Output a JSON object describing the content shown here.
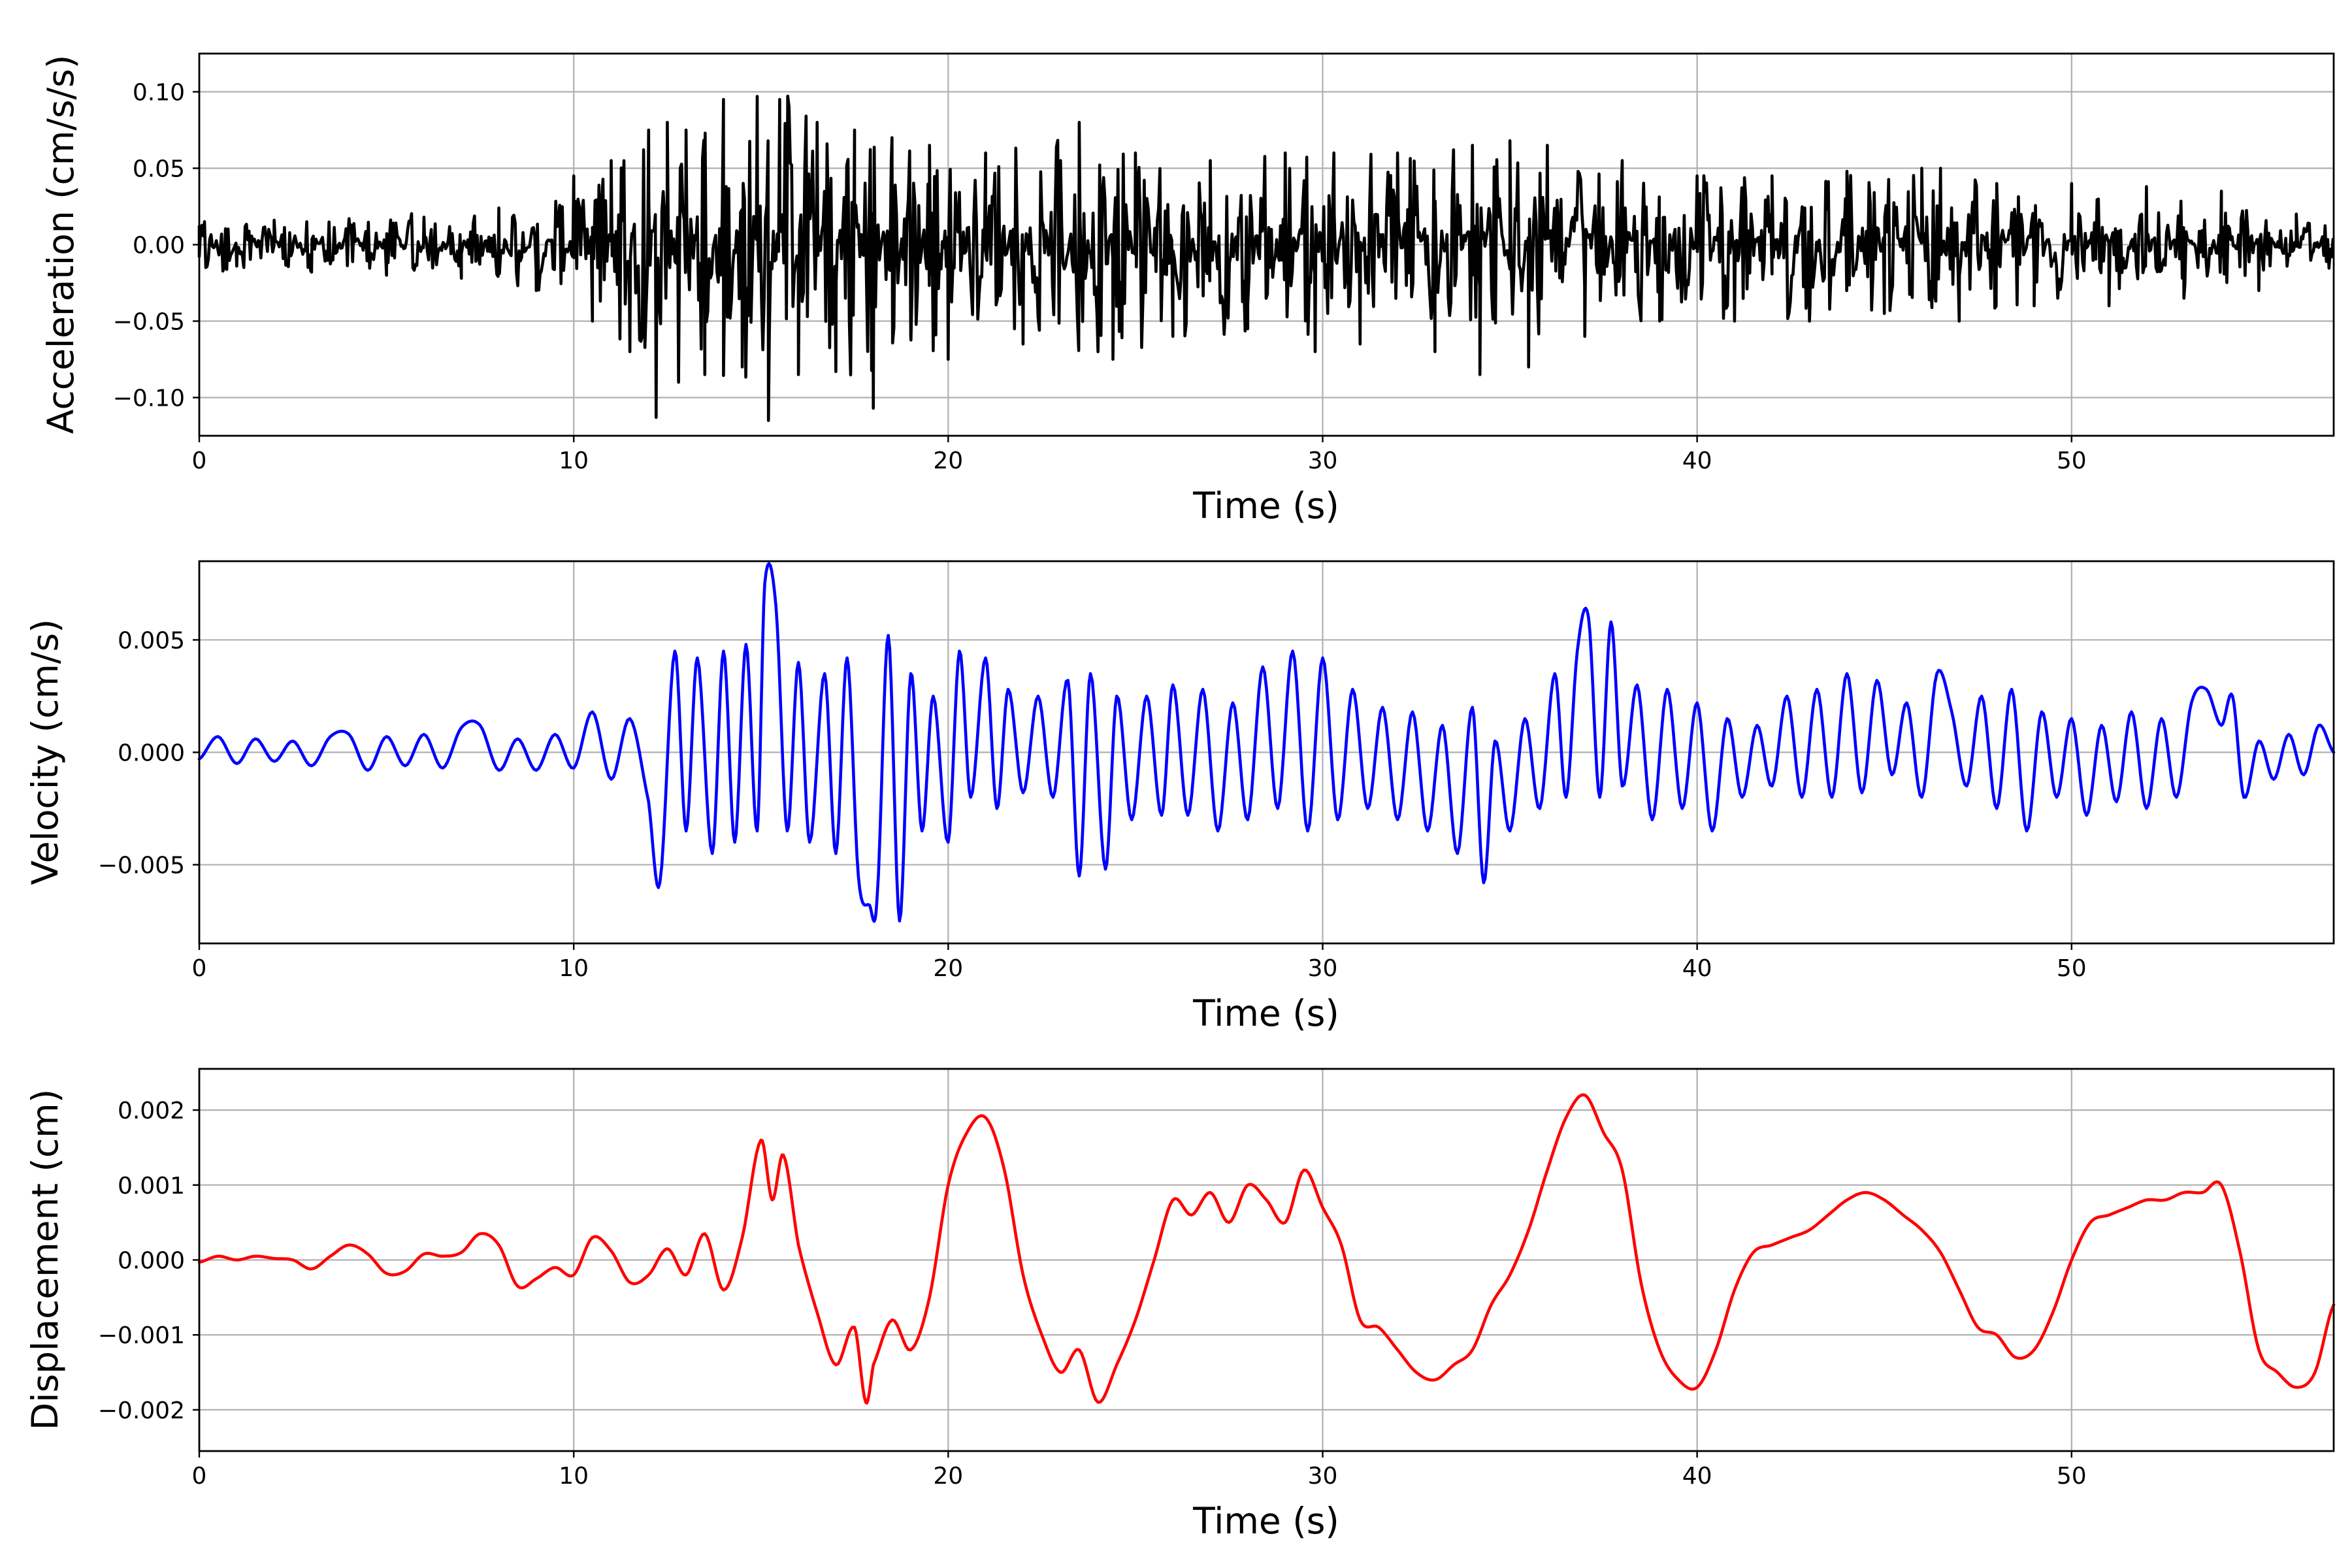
{
  "chart_data": [
    {
      "type": "line",
      "xlabel": "Time (s)",
      "ylabel": "Acceleration (cm/s/s)",
      "xlim": [
        0,
        57
      ],
      "ylim": [
        -0.125,
        0.125
      ],
      "xticks": [
        0,
        10,
        20,
        30,
        40,
        50
      ],
      "xtick_labels": [
        "0",
        "10",
        "20",
        "30",
        "40",
        "50"
      ],
      "yticks": [
        0.1,
        0.05,
        0.0,
        -0.05,
        -0.1
      ],
      "ytick_labels": [
        "0.10",
        "0.05",
        "0.00",
        "−0.05",
        "−0.10"
      ],
      "grid": true,
      "series": [
        {
          "color": "#000000",
          "envelope": [
            [
              0,
              0.02
            ],
            [
              5,
              0.02
            ],
            [
              8,
              0.025
            ],
            [
              10,
              0.04
            ],
            [
              11,
              0.06
            ],
            [
              12,
              0.09
            ],
            [
              15,
              0.1
            ],
            [
              18,
              0.09
            ],
            [
              20,
              0.07
            ],
            [
              24,
              0.07
            ],
            [
              30,
              0.06
            ],
            [
              34,
              0.07
            ],
            [
              37,
              0.06
            ],
            [
              40,
              0.05
            ],
            [
              46,
              0.05
            ],
            [
              50,
              0.035
            ],
            [
              54,
              0.03
            ],
            [
              57,
              0.015
            ]
          ],
          "x": [
            0,
            1,
            2,
            3,
            4,
            5,
            6,
            7,
            8,
            9,
            10,
            10.5,
            11,
            11.5,
            12,
            12.2,
            12.5,
            12.8,
            13,
            13.5,
            14,
            14.5,
            14.9,
            15.2,
            15.5,
            16,
            16.5,
            17,
            17.5,
            18,
            18.5,
            19,
            19.5,
            20,
            21,
            22,
            23,
            23.5,
            24,
            24.4,
            25,
            26,
            27,
            28,
            29,
            29.8,
            30.3,
            31,
            32,
            33,
            34,
            34.2,
            35,
            35.5,
            36,
            37,
            38,
            39,
            40,
            41,
            42,
            43,
            44,
            45,
            46,
            46.5,
            47,
            48,
            49,
            50,
            51,
            52,
            53,
            54,
            55,
            56,
            57
          ],
          "y": [
            0.012,
            -0.014,
            0.016,
            -0.018,
            0.017,
            -0.02,
            0.018,
            -0.022,
            0.024,
            -0.03,
            0.045,
            -0.05,
            0.055,
            -0.07,
            0.075,
            -0.113,
            0.08,
            -0.09,
            0.075,
            -0.085,
            0.095,
            -0.08,
            0.097,
            -0.115,
            0.095,
            -0.085,
            0.08,
            -0.083,
            0.075,
            -0.107,
            0.07,
            -0.06,
            0.065,
            -0.075,
            0.06,
            -0.065,
            0.055,
            0.08,
            -0.07,
            -0.075,
            0.06,
            -0.06,
            0.055,
            -0.055,
            0.06,
            -0.07,
            0.06,
            -0.065,
            0.06,
            -0.07,
            0.065,
            -0.085,
            0.068,
            -0.08,
            0.065,
            -0.06,
            0.055,
            -0.05,
            0.045,
            -0.05,
            0.045,
            -0.05,
            0.048,
            -0.045,
            0.05,
            0.05,
            -0.05,
            0.04,
            -0.04,
            0.04,
            -0.04,
            0.038,
            -0.035,
            0.035,
            -0.03,
            0.02,
            -0.012
          ]
        }
      ]
    },
    {
      "type": "line",
      "xlabel": "Time (s)",
      "ylabel": "Velocity (cm/s)",
      "xlim": [
        0,
        57
      ],
      "ylim": [
        -0.0085,
        0.0085
      ],
      "xticks": [
        0,
        10,
        20,
        30,
        40,
        50
      ],
      "xtick_labels": [
        "0",
        "10",
        "20",
        "30",
        "40",
        "50"
      ],
      "yticks": [
        0.005,
        0.0,
        -0.005
      ],
      "ytick_labels": [
        "0.005",
        "0.000",
        "−0.005"
      ],
      "grid": true,
      "series": [
        {
          "color": "#0000ff",
          "x": [
            0,
            0.5,
            1,
            1.5,
            2,
            2.5,
            3,
            3.5,
            4,
            4.5,
            5,
            5.5,
            6,
            6.5,
            7,
            7.5,
            8,
            8.5,
            9,
            9.5,
            10,
            10.5,
            11,
            11.5,
            12,
            12.3,
            12.7,
            13,
            13.3,
            13.7,
            14,
            14.3,
            14.6,
            14.9,
            15.1,
            15.4,
            15.7,
            16,
            16.3,
            16.7,
            17,
            17.3,
            17.6,
            17.9,
            18.1,
            18.4,
            18.7,
            19,
            19.3,
            19.6,
            20,
            20.3,
            20.6,
            21,
            21.3,
            21.6,
            22,
            22.4,
            22.8,
            23.2,
            23.5,
            23.8,
            24.2,
            24.5,
            24.9,
            25.3,
            25.7,
            26,
            26.4,
            26.8,
            27.2,
            27.6,
            28,
            28.4,
            28.8,
            29.2,
            29.6,
            30,
            30.4,
            30.8,
            31.2,
            31.6,
            32,
            32.4,
            32.8,
            33.2,
            33.6,
            34,
            34.3,
            34.6,
            35,
            35.4,
            35.8,
            36.2,
            36.5,
            36.8,
            37.1,
            37.4,
            37.7,
            38,
            38.4,
            38.8,
            39.2,
            39.6,
            40,
            40.4,
            40.8,
            41.2,
            41.6,
            42,
            42.4,
            42.8,
            43.2,
            43.6,
            44,
            44.4,
            44.8,
            45.2,
            45.6,
            46,
            46.4,
            46.8,
            47.2,
            47.6,
            48,
            48.4,
            48.8,
            49.2,
            49.6,
            50,
            50.4,
            50.8,
            51.2,
            51.6,
            52,
            52.4,
            52.8,
            53.2,
            53.6,
            54,
            54.3,
            54.6,
            55,
            55.4,
            55.8,
            56.2,
            56.6,
            57
          ],
          "y": [
            -0.0003,
            0.0007,
            -0.0005,
            0.0006,
            -0.0004,
            0.0005,
            -0.0006,
            0.0007,
            0.0008,
            -0.0008,
            0.0007,
            -0.0006,
            0.0008,
            -0.0007,
            0.0011,
            0.0012,
            -0.0008,
            0.0006,
            -0.0008,
            0.0008,
            -0.0007,
            0.0018,
            -0.0012,
            0.0015,
            -0.0022,
            -0.0058,
            0.0045,
            -0.0035,
            0.0042,
            -0.0045,
            0.0045,
            -0.004,
            0.0048,
            -0.0035,
            0.0075,
            0.0065,
            -0.0035,
            0.004,
            -0.004,
            0.0035,
            -0.0045,
            0.0042,
            -0.0055,
            -0.0068,
            -0.0065,
            0.0052,
            -0.0075,
            0.0035,
            -0.0035,
            0.0025,
            -0.004,
            0.0045,
            -0.002,
            0.0042,
            -0.0025,
            0.0028,
            -0.0018,
            0.0025,
            -0.002,
            0.0032,
            -0.0055,
            0.0035,
            -0.0052,
            0.0025,
            -0.003,
            0.0025,
            -0.0028,
            0.003,
            -0.0028,
            0.0028,
            -0.0035,
            0.0022,
            -0.003,
            0.0038,
            -0.0025,
            0.0045,
            -0.0035,
            0.0042,
            -0.003,
            0.0028,
            -0.0025,
            0.002,
            -0.003,
            0.0018,
            -0.0035,
            0.0012,
            -0.0045,
            0.002,
            -0.0058,
            0.0005,
            -0.0035,
            0.0015,
            -0.0025,
            0.0035,
            -0.002,
            0.0045,
            0.006,
            -0.002,
            0.0058,
            -0.0015,
            0.003,
            -0.003,
            0.0028,
            -0.0025,
            0.0022,
            -0.0035,
            0.0015,
            -0.002,
            0.0012,
            -0.0015,
            0.0025,
            -0.002,
            0.0028,
            -0.002,
            0.0035,
            -0.0018,
            0.0032,
            -0.001,
            0.0022,
            -0.002,
            0.0035,
            0.0018,
            -0.0015,
            0.0025,
            -0.0025,
            0.0028,
            -0.0035,
            0.0018,
            -0.002,
            0.0015,
            -0.0028,
            0.0012,
            -0.0022,
            0.0018,
            -0.0025,
            0.0015,
            -0.002,
            0.0022,
            0.0028,
            0.0012,
            0.0025,
            -0.002,
            0.0005,
            -0.0012,
            0.0008,
            -0.001,
            0.0012,
            0.0
          ]
        }
      ]
    },
    {
      "type": "line",
      "xlabel": "Time (s)",
      "ylabel": "Displacement (cm)",
      "xlim": [
        0,
        57
      ],
      "ylim": [
        -0.00255,
        0.00255
      ],
      "xticks": [
        0,
        10,
        20,
        30,
        40,
        50
      ],
      "xtick_labels": [
        "0",
        "10",
        "20",
        "30",
        "40",
        "50"
      ],
      "yticks": [
        0.002,
        0.001,
        0.0,
        -0.001,
        -0.002
      ],
      "ytick_labels": [
        "0.002",
        "0.001",
        "0.000",
        "−0.001",
        "−0.002"
      ],
      "grid": true,
      "series": [
        {
          "color": "#ff0000",
          "x": [
            0,
            0.5,
            1,
            1.5,
            2,
            2.5,
            3,
            3.5,
            4,
            4.5,
            5,
            5.5,
            6,
            6.5,
            7,
            7.5,
            8,
            8.5,
            9,
            9.5,
            10,
            10.5,
            11,
            11.5,
            12,
            12.5,
            13,
            13.5,
            14,
            14.5,
            15,
            15.3,
            15.6,
            16,
            16.5,
            17,
            17.5,
            17.8,
            18,
            18.5,
            19,
            19.5,
            20,
            20.5,
            21,
            21.5,
            22,
            22.5,
            23,
            23.5,
            24,
            24.5,
            25,
            25.5,
            26,
            26.5,
            27,
            27.5,
            28,
            28.5,
            29,
            29.5,
            30,
            30.5,
            31,
            31.5,
            32,
            32.5,
            33,
            33.5,
            34,
            34.5,
            35,
            35.5,
            36,
            36.5,
            37,
            37.5,
            38,
            38.5,
            39,
            39.5,
            40,
            40.5,
            41,
            41.5,
            42,
            42.5,
            43,
            43.5,
            44,
            44.5,
            45,
            45.5,
            46,
            46.5,
            47,
            47.5,
            48,
            48.5,
            49,
            49.5,
            50,
            50.5,
            51,
            51.5,
            52,
            52.5,
            53,
            53.5,
            54,
            54.5,
            55,
            55.5,
            56,
            56.5,
            57
          ],
          "y": [
            -3e-05,
            5e-05,
            0.0,
            5e-05,
            2e-05,
            0.0,
            -0.00012,
            5e-05,
            0.0002,
            8e-05,
            -0.00018,
            -0.00015,
            8e-05,
            5e-05,
            0.0001,
            0.00035,
            0.0002,
            -0.00035,
            -0.00025,
            -0.0001,
            -0.0002,
            0.0003,
            0.00012,
            -0.0003,
            -0.0002,
            0.00015,
            -0.0002,
            0.00035,
            -0.0004,
            0.0003,
            0.0016,
            0.0008,
            0.0014,
            0.0002,
            -0.0007,
            -0.0014,
            -0.0009,
            -0.0019,
            -0.0014,
            -0.0008,
            -0.0012,
            -0.0005,
            0.001,
            0.0017,
            0.0019,
            0.0012,
            -0.0002,
            -0.001,
            -0.0015,
            -0.0012,
            -0.0019,
            -0.0014,
            -0.0008,
            0.0,
            0.0008,
            0.0006,
            0.0009,
            0.0005,
            0.001,
            0.0008,
            0.0005,
            0.0012,
            0.0007,
            0.0002,
            -0.0008,
            -0.0009,
            -0.0012,
            -0.0015,
            -0.0016,
            -0.0014,
            -0.0012,
            -0.0006,
            -0.0002,
            0.0004,
            0.0012,
            0.0019,
            0.0022,
            0.0017,
            0.0012,
            -0.0003,
            -0.0012,
            -0.0016,
            -0.0017,
            -0.0012,
            -0.0004,
            0.0001,
            0.0002,
            0.0003,
            0.0004,
            0.0006,
            0.0008,
            0.0009,
            0.0008,
            0.0006,
            0.0004,
            0.0001,
            -0.0004,
            -0.0009,
            -0.001,
            -0.0013,
            -0.0012,
            -0.0007,
            0.0,
            0.0005,
            0.0006,
            0.0007,
            0.0008,
            0.0008,
            0.0009,
            0.0009,
            0.001,
            0.0001,
            -0.0012,
            -0.0015,
            -0.0017,
            -0.0015,
            -0.0006
          ]
        }
      ]
    }
  ]
}
